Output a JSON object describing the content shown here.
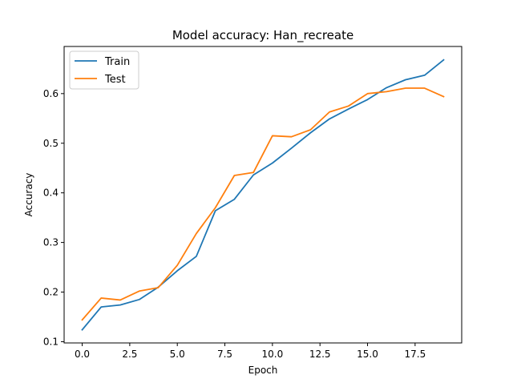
{
  "chart_data": {
    "type": "line",
    "title": "Model accuracy: Han_recreate",
    "xlabel": "Epoch",
    "ylabel": "Accuracy",
    "x": [
      0,
      1,
      2,
      3,
      4,
      5,
      6,
      7,
      8,
      9,
      10,
      11,
      12,
      13,
      14,
      15,
      16,
      17,
      18,
      19
    ],
    "xlim": [
      -0.95,
      19.95
    ],
    "ylim": [
      0.0975,
      0.695
    ],
    "xticks": [
      0.0,
      2.5,
      5.0,
      7.5,
      10.0,
      12.5,
      15.0,
      17.5
    ],
    "xtick_labels": [
      "0.0",
      "2.5",
      "5.0",
      "7.5",
      "10.0",
      "12.5",
      "15.0",
      "17.5"
    ],
    "yticks": [
      0.1,
      0.2,
      0.3,
      0.4,
      0.5,
      0.6
    ],
    "ytick_labels": [
      "0.1",
      "0.2",
      "0.3",
      "0.4",
      "0.5",
      "0.6"
    ],
    "grid": false,
    "legend_position": "top-left",
    "series": [
      {
        "name": "Train",
        "color": "#1f77b4",
        "values": [
          0.124,
          0.17,
          0.174,
          0.185,
          0.21,
          0.243,
          0.272,
          0.364,
          0.387,
          0.436,
          0.46,
          0.49,
          0.521,
          0.549,
          0.569,
          0.588,
          0.612,
          0.628,
          0.637,
          0.668
        ]
      },
      {
        "name": "Test",
        "color": "#ff7f0e",
        "values": [
          0.144,
          0.188,
          0.184,
          0.202,
          0.209,
          0.254,
          0.318,
          0.37,
          0.435,
          0.441,
          0.515,
          0.513,
          0.527,
          0.563,
          0.575,
          0.6,
          0.604,
          0.611,
          0.611,
          0.594
        ]
      }
    ]
  }
}
